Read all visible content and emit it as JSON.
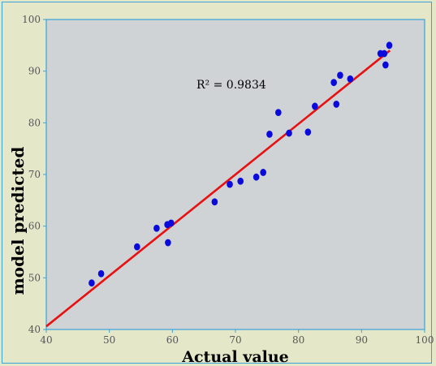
{
  "chart_data": {
    "type": "scatter",
    "title": "",
    "xlabel": "Actual value",
    "ylabel": "model predicted",
    "xlim": [
      40,
      100
    ],
    "ylim": [
      40,
      100
    ],
    "xticks": [
      "40",
      "50",
      "60",
      "70",
      "80",
      "90",
      "100"
    ],
    "yticks": [
      "40",
      "50",
      "60",
      "70",
      "80",
      "90",
      "100"
    ],
    "grid": false,
    "annotation": "R² = 0.9834",
    "colors": {
      "background": "#e4e8c8",
      "plot_area": "#cfd3d6",
      "plot_border": "#3aa3d8",
      "points": "#0a0adc",
      "trendline": "#e81010",
      "label_text": "#555555"
    },
    "series": [
      {
        "x": [
          47.2,
          48.7,
          54.4,
          57.5,
          59.2,
          59.8,
          59.3,
          66.7,
          69.1,
          70.8,
          73.3,
          74.4,
          75.4,
          76.8,
          78.5,
          81.5,
          82.6,
          85.6,
          86.0,
          86.6,
          88.2,
          93.0,
          93.6,
          93.8,
          94.4
        ],
        "y": [
          49.0,
          50.8,
          56.0,
          59.6,
          60.3,
          60.6,
          56.8,
          64.7,
          68.1,
          68.7,
          69.5,
          70.4,
          77.8,
          82.0,
          78.0,
          78.2,
          83.2,
          87.8,
          83.6,
          89.2,
          88.5,
          93.4,
          93.4,
          91.2,
          95.0
        ]
      }
    ],
    "trendline": {
      "x": [
        40,
        94.5
      ],
      "y": [
        40.6,
        94.0
      ]
    }
  }
}
